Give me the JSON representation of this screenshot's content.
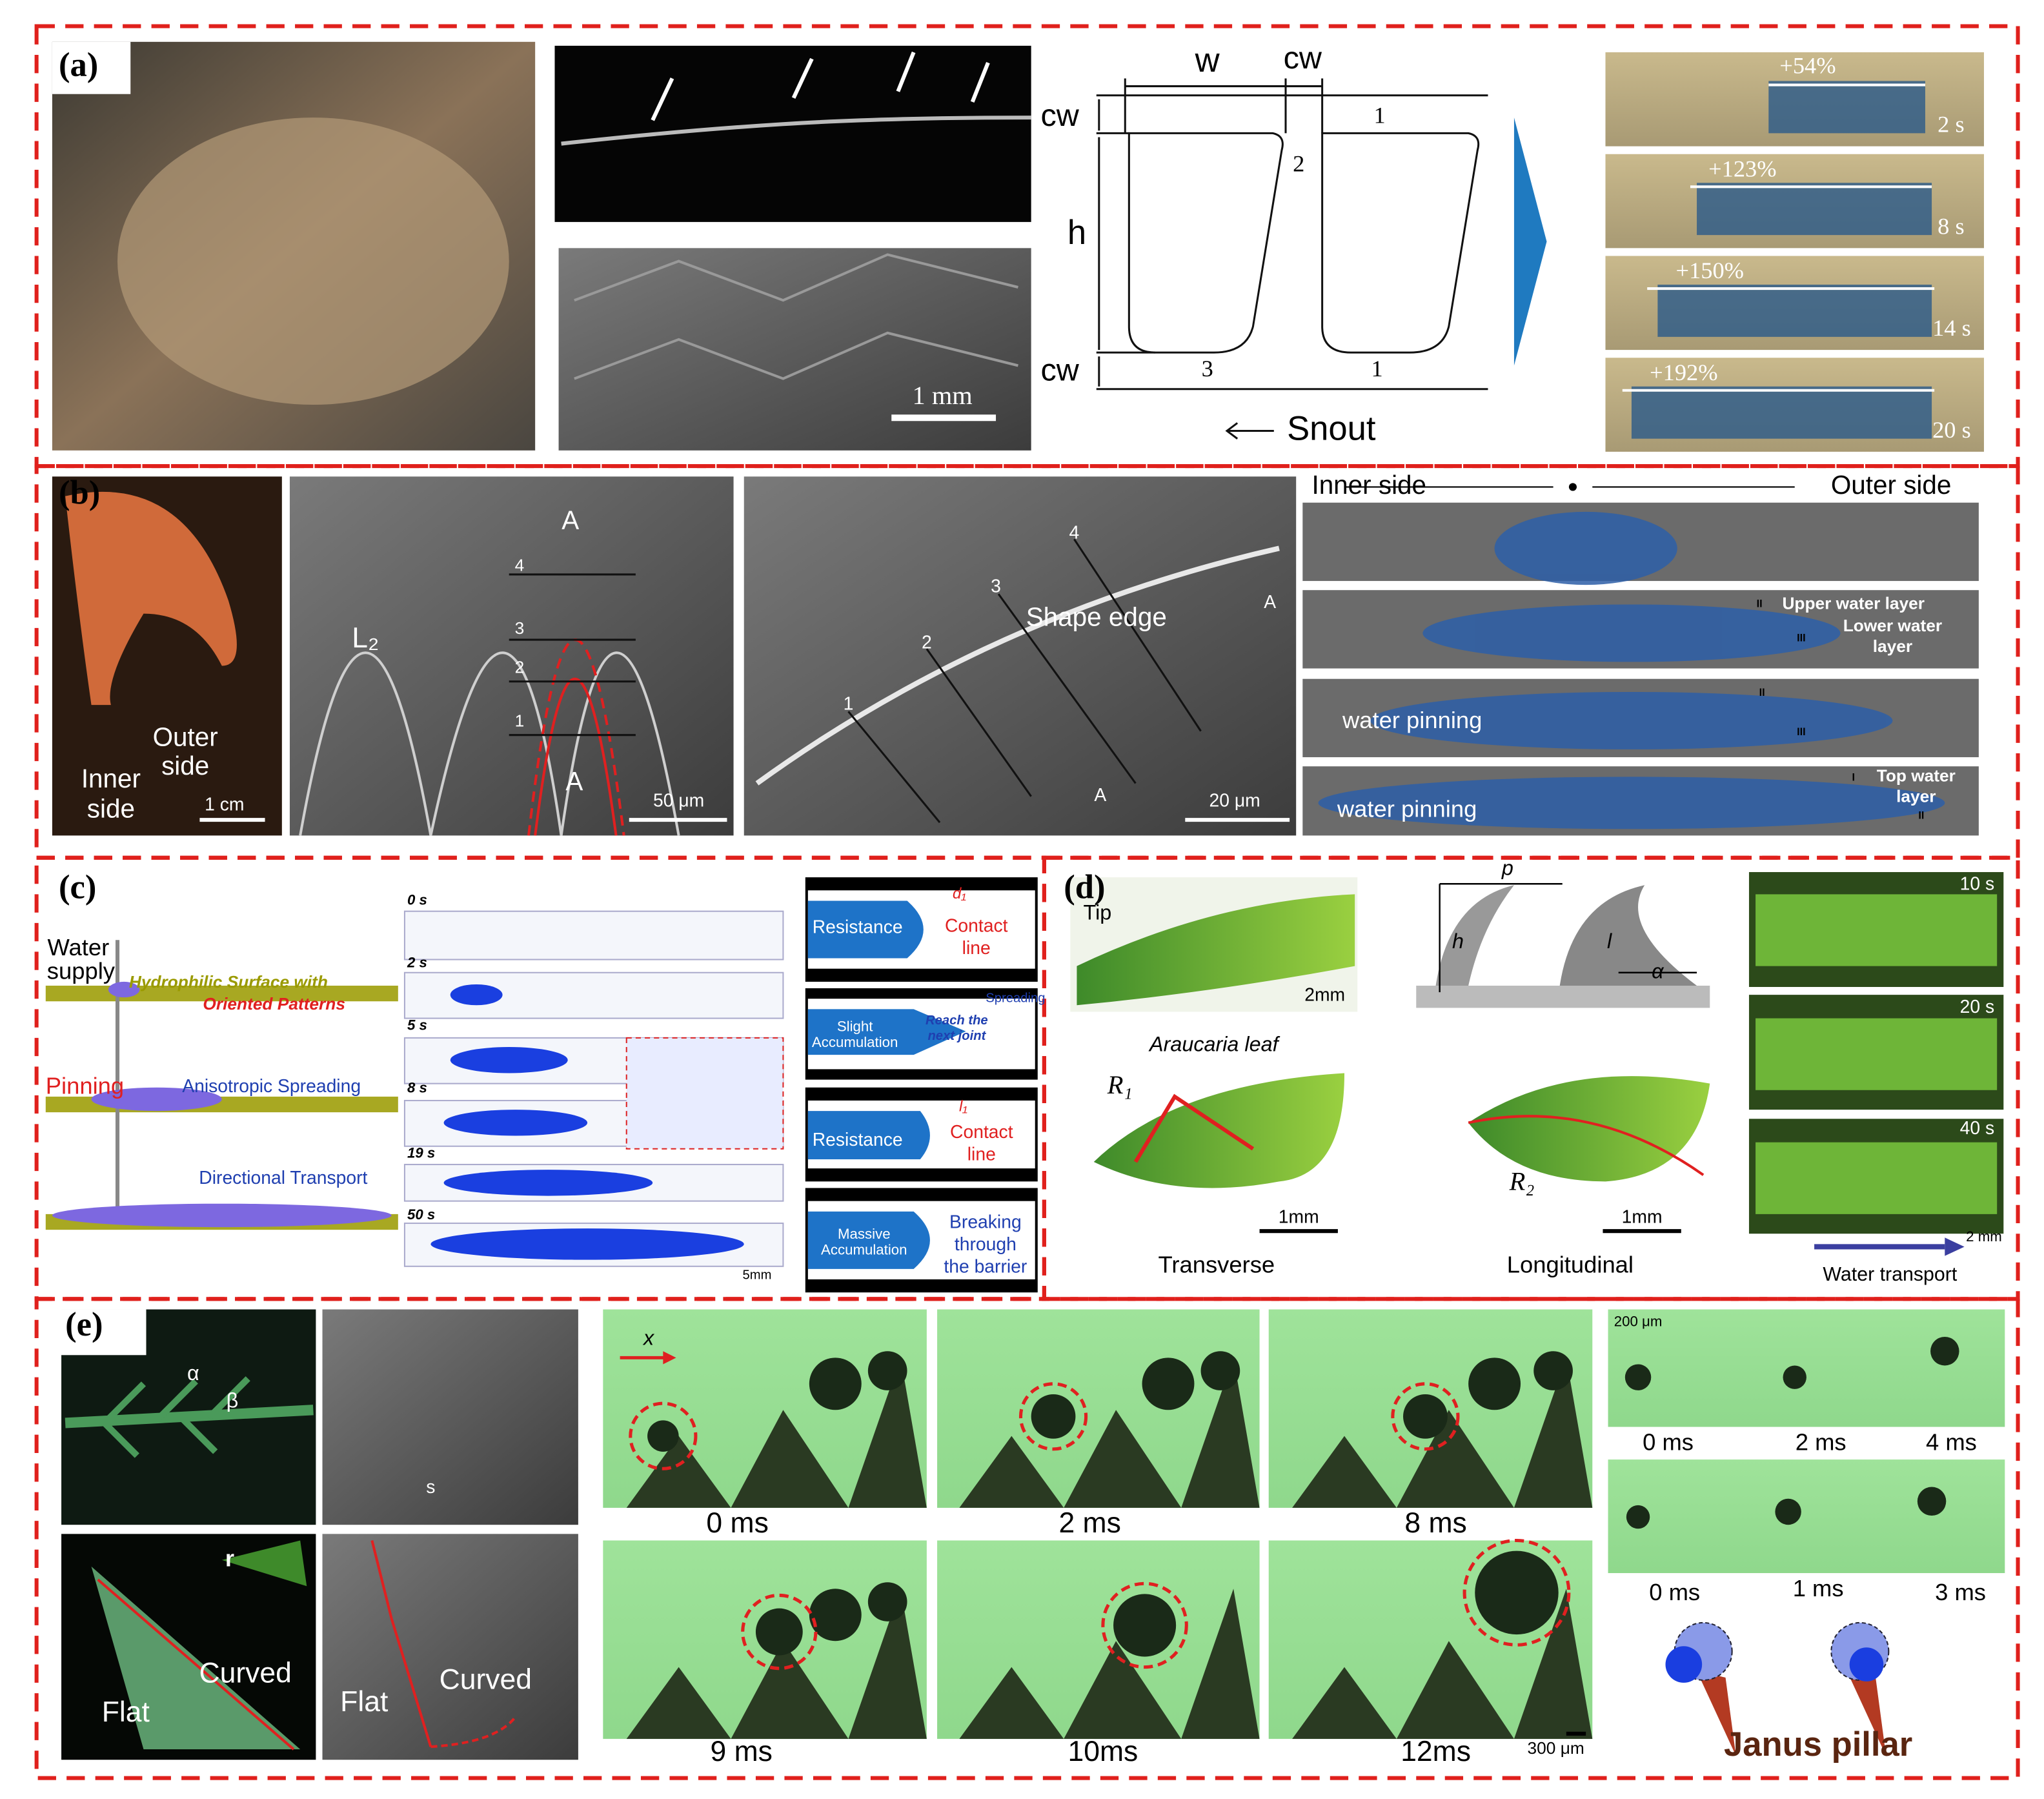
{
  "panel_a": {
    "label": "(a)",
    "schematic": {
      "w": "w",
      "cw_top": "cw",
      "cw_upper": "cw",
      "h": "h",
      "cw_lower": "cw",
      "numbers": [
        "1",
        "2",
        "3",
        "1"
      ],
      "snout": "Snout"
    },
    "sem_scale": "1 mm",
    "frames": [
      {
        "change": "+54%",
        "time": "2 s"
      },
      {
        "change": "+123%",
        "time": "8 s"
      },
      {
        "change": "+150%",
        "time": "14 s"
      },
      {
        "change": "+192%",
        "time": "20 s"
      }
    ]
  },
  "panel_b": {
    "label": "(b)",
    "photo": {
      "inner_side": [
        "Inner",
        "side"
      ],
      "outer_side": [
        "Outer",
        "side"
      ],
      "scale": "1 cm"
    },
    "sem1": {
      "period": "L₂",
      "a_top": "A",
      "a_bottom": "A",
      "numbers": [
        "1",
        "2",
        "3",
        "4"
      ],
      "scale": "50 μm"
    },
    "sem2": {
      "edge": "Shape edge",
      "numbers": [
        "1",
        "2",
        "3",
        "4"
      ],
      "a_right": "A",
      "a_bottom": "A",
      "scale": "20 μm"
    },
    "diagram": {
      "inner": "Inner side",
      "outer": "Outer side",
      "upper_layer": "Upper water layer",
      "lower_layer": [
        "Lower water",
        "layer"
      ],
      "pinning_1": "water pinning",
      "pinning_2": "water pinning",
      "top_layer": [
        "Top water",
        "layer"
      ],
      "markers": [
        "II",
        "III",
        "II",
        "III",
        "I",
        "II"
      ]
    }
  },
  "panel_c": {
    "label": "(c)",
    "schematic": {
      "water_supply": [
        "Water",
        "supply"
      ],
      "surface": [
        "Hydrophilic Surface with",
        "Oriented Patterns"
      ],
      "pinning": "Pinning",
      "spreading": "Anisotropic Spreading",
      "transport": "Directional Transport"
    },
    "times": [
      "0 s",
      "2 s",
      "5 s",
      "8 s",
      "19 s",
      "50 s"
    ],
    "scale": "5mm",
    "stages": {
      "resistance_1": "Resistance",
      "d1": "d₁",
      "contact_1": [
        "Contact",
        "line"
      ],
      "slight": [
        "Slight",
        "Accumulation"
      ],
      "reach": [
        "Reach the",
        "next joint"
      ],
      "spreading": "Spreading",
      "resistance_2": "Resistance",
      "l1": "l₁",
      "contact_2": [
        "Contact",
        "line"
      ],
      "massive": [
        "Massive",
        "Accumulation"
      ],
      "breaking": [
        "Breaking",
        "through",
        "the barrier"
      ]
    }
  },
  "panel_d": {
    "label": "(d)",
    "leaf": {
      "tip": "Tip",
      "scale": "2mm",
      "name": "Araucaria leaf"
    },
    "transverse": {
      "radius": "R₁",
      "scale": "1mm",
      "caption": "Transverse"
    },
    "longitudinal": {
      "radius": "R₂",
      "scale": "1mm",
      "caption": "Longitudinal"
    },
    "model": {
      "p": "p",
      "h": "h",
      "l": "l",
      "alpha": "α"
    },
    "sequence": {
      "times": [
        "10 s",
        "20 s",
        "40 s"
      ],
      "scale": "2 mm",
      "caption": "Water transport"
    }
  },
  "panel_e": {
    "label": "(e)",
    "photos": {
      "alpha": "α",
      "beta": "β",
      "s": "s",
      "r": "r",
      "flat_1": "Flat",
      "curved_1": "Curved",
      "flat_2": "Flat",
      "curved_2": "Curved"
    },
    "frames": {
      "axis": "x",
      "times": [
        "0 ms",
        "2 ms",
        "8 ms",
        "9 ms",
        "10ms",
        "12ms"
      ],
      "scale": "300 μm"
    },
    "janus": {
      "scale": "200 μm",
      "times_top": [
        "0 ms",
        "2 ms",
        "4 ms"
      ],
      "times_bottom": [
        "0 ms",
        "1 ms",
        "3 ms"
      ],
      "caption": "Janus pillar"
    }
  }
}
